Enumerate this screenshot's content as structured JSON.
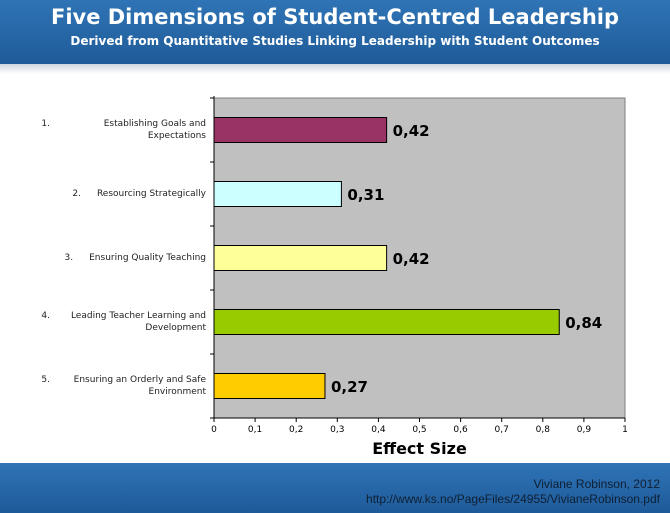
{
  "header": {
    "title": "Five Dimensions of Student-Centred Leadership",
    "subtitle": "Derived from Quantitative Studies Linking Leadership with Student Outcomes"
  },
  "footer": {
    "author": "Viviane Robinson, 2012",
    "url": "http://www.ks.no/PageFiles/24955/VivianeRobinson.pdf"
  },
  "chart_data": {
    "type": "bar",
    "orientation": "horizontal",
    "categories": [
      {
        "num": "1.",
        "text": "Establishing Goals and Expectations"
      },
      {
        "num": "2.",
        "text": "Resourcing Strategically"
      },
      {
        "num": "3.",
        "text": "Ensuring Quality Teaching"
      },
      {
        "num": "4.",
        "text": "Leading Teacher Learning and Development"
      },
      {
        "num": "5.",
        "text": "Ensuring an Orderly and Safe Environment"
      }
    ],
    "values": [
      0.42,
      0.31,
      0.42,
      0.84,
      0.27
    ],
    "value_labels": [
      "0,42",
      "0,31",
      "0,42",
      "0,84",
      "0,27"
    ],
    "colors": [
      "#993366",
      "#ccffff",
      "#ffff99",
      "#99cc00",
      "#ffcc00"
    ],
    "xlabel": "Effect Size",
    "xlim": [
      0,
      1
    ],
    "xticks": [
      "0",
      "0,1",
      "0,2",
      "0,3",
      "0,4",
      "0,5",
      "0,6",
      "0,7",
      "0,8",
      "0,9",
      "1"
    ],
    "plot_background": "#c0c0c0",
    "grid": false
  }
}
